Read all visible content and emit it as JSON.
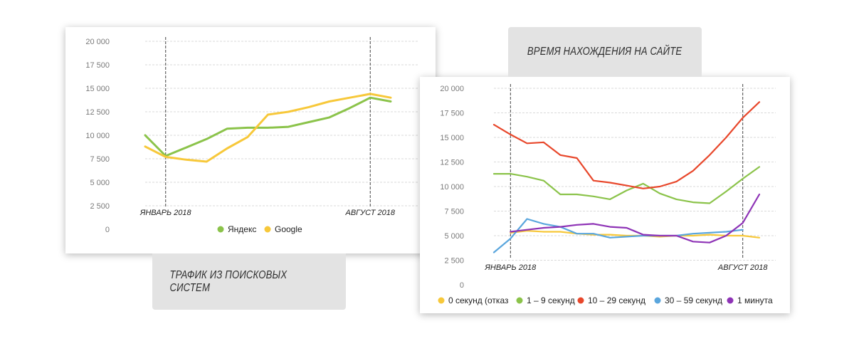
{
  "labels": {
    "search_traffic": "ТРАФИК ИЗ ПОИСКОВЫХ СИСТЕМ",
    "time_on_site": "ВРЕМЯ НАХОЖДЕНИЯ НА САЙТЕ"
  },
  "chart_data": [
    {
      "type": "line",
      "title": "",
      "xlabel": "",
      "ylabel": "",
      "ylim": [
        0,
        20000
      ],
      "yticks": [
        "20 000",
        "17 500",
        "15 000",
        "12 500",
        "10 000",
        "7 500",
        "5 000",
        "2 500",
        "0"
      ],
      "grid": true,
      "legend": "bottom",
      "markers": [
        "ЯНВАРЬ 2018",
        "АВГУСТ 2018"
      ],
      "marker_positions": [
        1,
        11
      ],
      "x": [
        0,
        1,
        2,
        3,
        4,
        5,
        6,
        7,
        8,
        9,
        10,
        11,
        12
      ],
      "series": [
        {
          "name": "Яндекс",
          "color": "#8bc34a",
          "values": [
            10000,
            7800,
            8700,
            9600,
            10700,
            10800,
            10800,
            10900,
            11400,
            11900,
            12900,
            14000,
            13600
          ]
        },
        {
          "name": "Google",
          "color": "#f7c83a",
          "values": [
            8800,
            7700,
            7400,
            7200,
            8600,
            9800,
            12200,
            12500,
            13000,
            13600,
            14000,
            14400,
            14000
          ]
        }
      ]
    },
    {
      "type": "line",
      "title": "",
      "xlabel": "",
      "ylabel": "",
      "ylim": [
        0,
        20000
      ],
      "yticks": [
        "20 000",
        "17 500",
        "15 000",
        "12 500",
        "10 000",
        "7 500",
        "5 000",
        "2 500",
        "0"
      ],
      "grid": true,
      "legend": "bottom",
      "markers": [
        "ЯНВАРЬ 2018",
        "АВГУСТ 2018"
      ],
      "marker_positions": [
        1,
        15
      ],
      "x": [
        0,
        1,
        2,
        3,
        4,
        5,
        6,
        7,
        8,
        9,
        10,
        11,
        12,
        13,
        14,
        15,
        16
      ],
      "series": [
        {
          "name": "0 секунд (отказ",
          "color": "#f7c83a",
          "values": [
            null,
            5300,
            5500,
            5400,
            5400,
            5200,
            5100,
            5100,
            5000,
            5000,
            4900,
            5000,
            5000,
            5100,
            5000,
            5000,
            4800
          ]
        },
        {
          "name": "1 – 9 секунд",
          "color": "#8bc34a",
          "values": [
            11300,
            11300,
            11000,
            10600,
            9200,
            9200,
            9000,
            8700,
            9600,
            10300,
            9300,
            8700,
            8400,
            8300,
            9500,
            10800,
            12000
          ]
        },
        {
          "name": "10 – 29 секунд",
          "color": "#e8472b",
          "values": [
            16300,
            15300,
            14400,
            14500,
            13200,
            12900,
            10600,
            10400,
            10100,
            9800,
            10000,
            10500,
            11600,
            13200,
            15000,
            17000,
            18600
          ]
        },
        {
          "name": "30 – 59 секунд",
          "color": "#5aa6dd",
          "values": [
            3300,
            4700,
            6700,
            6200,
            5900,
            5200,
            5200,
            4800,
            4900,
            5000,
            5000,
            5000,
            5200,
            5300,
            5400,
            5600,
            null
          ]
        },
        {
          "name": "1 минута",
          "color": "#8e33b6",
          "values": [
            null,
            5400,
            5600,
            5800,
            5900,
            6100,
            6200,
            5900,
            5800,
            5100,
            5000,
            5000,
            4400,
            4300,
            5000,
            6300,
            9200
          ]
        }
      ]
    }
  ]
}
